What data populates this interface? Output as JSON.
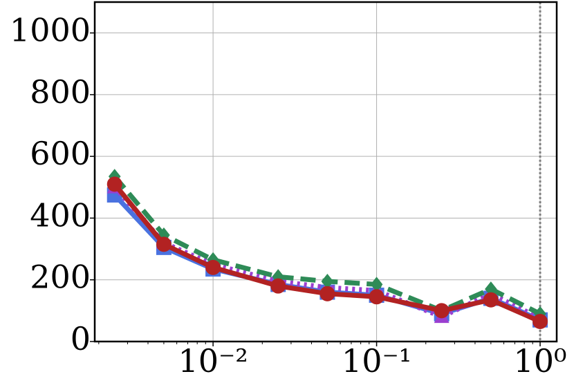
{
  "chart_data": {
    "type": "line",
    "x": [
      0.0025,
      0.005,
      0.01,
      0.025,
      0.05,
      0.1,
      0.25,
      0.5,
      1
    ],
    "series": [
      {
        "color": "#4a72e0",
        "marker": "square",
        "dash": "solid",
        "values": [
          475,
          305,
          235,
          185,
          160,
          150,
          90,
          140,
          70
        ]
      },
      {
        "color": "#9b3fd0",
        "marker": "triangle",
        "dash": "dotted",
        "values": [
          500,
          320,
          250,
          195,
          175,
          165,
          80,
          155,
          75
        ]
      },
      {
        "color": "#2e8b57",
        "marker": "diamond",
        "dash": "dashed",
        "values": [
          535,
          345,
          265,
          210,
          195,
          185,
          100,
          170,
          90
        ]
      },
      {
        "color": "#b22222",
        "marker": "circle",
        "dash": "solid",
        "values": [
          510,
          315,
          240,
          180,
          155,
          145,
          100,
          135,
          65
        ]
      }
    ],
    "xscale": "log",
    "xlim": [
      0.00189,
      1.263
    ],
    "xticks": [
      {
        "value": 0.01,
        "label": "10⁻²"
      },
      {
        "value": 0.1,
        "label": "10⁻¹"
      },
      {
        "value": 1,
        "label": "10⁰"
      }
    ],
    "ylim": [
      0,
      1100
    ],
    "yticks": [
      0,
      200,
      400,
      600,
      800,
      1000
    ],
    "grid": true,
    "vline": 1
  }
}
